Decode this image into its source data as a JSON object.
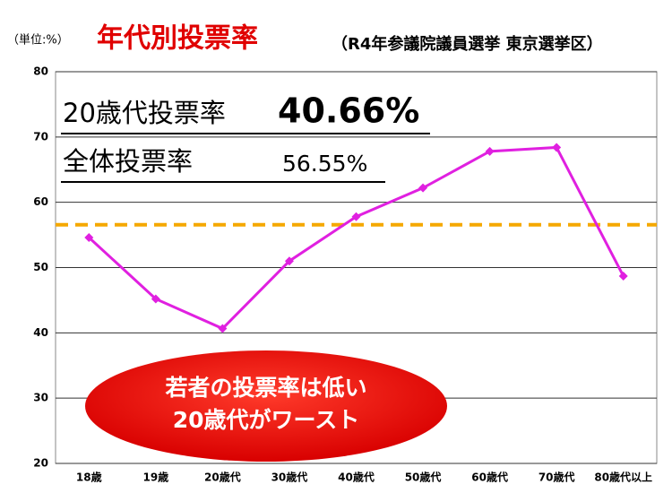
{
  "chart_data": {
    "type": "line",
    "unit_label": "（単位:%）",
    "title": "年代別投票率",
    "subtitle": "（R4年参議院議員選挙 東京選挙区）",
    "categories": [
      "18歳",
      "19歳",
      "20歳代",
      "30歳代",
      "40歳代",
      "50歳代",
      "60歳代",
      "70歳代",
      "80歳代以上"
    ],
    "values": [
      54.6,
      45.2,
      40.66,
      51.0,
      57.8,
      62.2,
      67.8,
      68.4,
      48.7
    ],
    "value_labels": [
      null,
      null,
      "40.66%",
      null,
      null,
      null,
      null,
      null,
      null
    ],
    "highlight_label": "20歳代投票率",
    "color": "#e020e0",
    "reference_line": {
      "name": "全体投票率",
      "value": 56.55,
      "label": "56.55%",
      "color": "#f5a800"
    },
    "ylim": [
      20,
      80
    ],
    "yticks": [
      20,
      30,
      40,
      50,
      60,
      70,
      80
    ],
    "grid": true,
    "callout": [
      "若者の投票率は低い",
      "20歳代がワースト"
    ]
  }
}
